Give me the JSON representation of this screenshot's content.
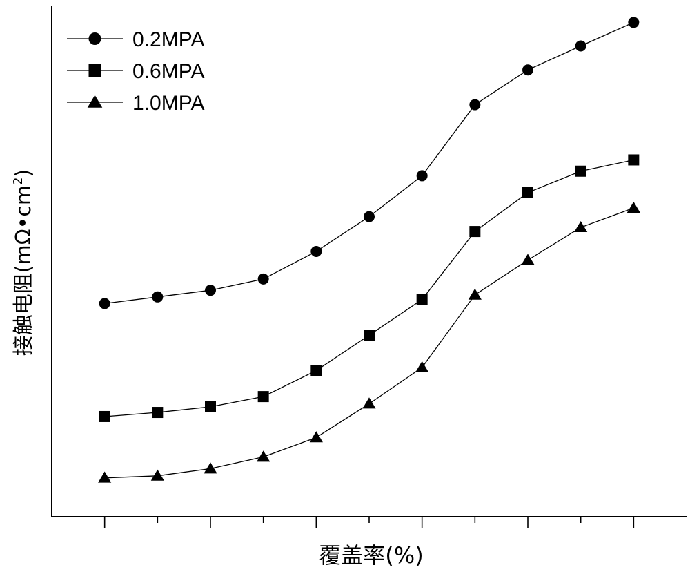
{
  "chart_data": {
    "type": "line",
    "title": "",
    "xlabel": "覆盖率(%)",
    "ylabel": "接触电阻(mΩ•cm",
    "ylabel_sup": "2",
    "ylabel_close": ")",
    "x": [
      1,
      2,
      3,
      4,
      5,
      6,
      7,
      8,
      9,
      10,
      11
    ],
    "xlim": [
      0,
      12
    ],
    "ylim": [
      0,
      100
    ],
    "tick_labels_shown": false,
    "grid": false,
    "legend_position": "top-left",
    "series": [
      {
        "name": "0.2MPA",
        "marker": "circle",
        "values": [
          41.7,
          43.0,
          44.3,
          46.5,
          51.9,
          58.7,
          66.7,
          80.6,
          87.4,
          92.1,
          96.7
        ]
      },
      {
        "name": "0.6MPA",
        "marker": "square",
        "values": [
          19.6,
          20.4,
          21.5,
          23.5,
          28.6,
          35.5,
          42.5,
          55.8,
          63.4,
          67.6,
          69.8
        ]
      },
      {
        "name": "1.0MPA",
        "marker": "triangle",
        "values": [
          7.6,
          8.0,
          9.4,
          11.7,
          15.5,
          22.1,
          29.2,
          43.4,
          50.2,
          56.6,
          60.4
        ]
      }
    ]
  }
}
